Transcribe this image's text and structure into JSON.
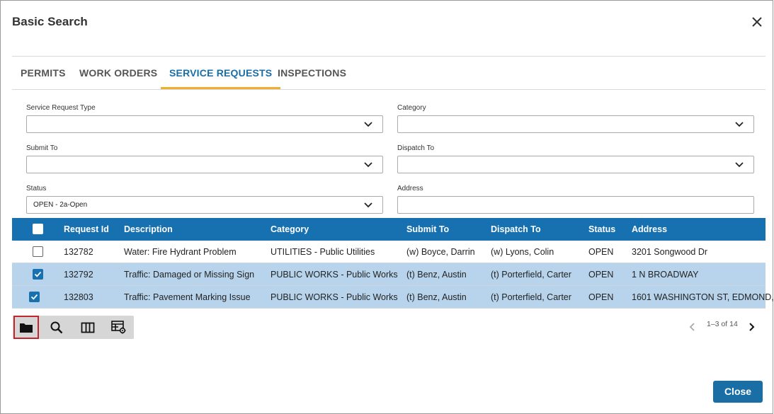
{
  "dialog": {
    "title": "Basic Search"
  },
  "tabs": [
    {
      "label": "PERMITS",
      "active": false
    },
    {
      "label": "WORK ORDERS",
      "active": false
    },
    {
      "label": "SERVICE REQUESTS",
      "active": true
    },
    {
      "label": "INSPECTIONS",
      "active": false
    }
  ],
  "form": {
    "service_request_type": {
      "label": "Service Request Type",
      "value": ""
    },
    "category": {
      "label": "Category",
      "value": ""
    },
    "submit_to": {
      "label": "Submit To",
      "value": ""
    },
    "dispatch_to": {
      "label": "Dispatch To",
      "value": ""
    },
    "status": {
      "label": "Status",
      "value": "OPEN - 2a-Open"
    },
    "address": {
      "label": "Address",
      "value": ""
    }
  },
  "grid": {
    "columns": [
      "Request Id",
      "Description",
      "Category",
      "Submit To",
      "Dispatch To",
      "Status",
      "Address"
    ],
    "rows": [
      {
        "checked": false,
        "cells": [
          "132782",
          "Water: Fire Hydrant Problem",
          "UTILITIES - Public Utilities",
          "(w) Boyce, Darrin",
          "(w) Lyons, Colin",
          "OPEN",
          "3201 Songwood Dr"
        ]
      },
      {
        "checked": true,
        "cells": [
          "132792",
          "Traffic: Damaged or Missing Sign",
          "PUBLIC WORKS - Public Works",
          "(t) Benz, Austin",
          "(t) Porterfield, Carter",
          "OPEN",
          "1 N BROADWAY"
        ]
      },
      {
        "checked": true,
        "cells": [
          "132803",
          "Traffic: Pavement Marking Issue",
          "PUBLIC WORKS - Public Works",
          "(t) Benz, Austin",
          "(t) Porterfield, Carter",
          "OPEN",
          "1601 WASHINGTON ST, EDMOND,"
        ]
      }
    ]
  },
  "toolbar": {
    "buttons": [
      "folder-icon",
      "search-icon",
      "columns-icon",
      "grid-settings-icon"
    ]
  },
  "pager": {
    "text": "1–3 of 14"
  },
  "footer": {
    "close_label": "Close"
  },
  "colors": {
    "accent": "#1a6ea6",
    "header_bg": "#1770b0",
    "tab_underline": "#f0ad2a",
    "selected_row": "#b8d4ec"
  }
}
